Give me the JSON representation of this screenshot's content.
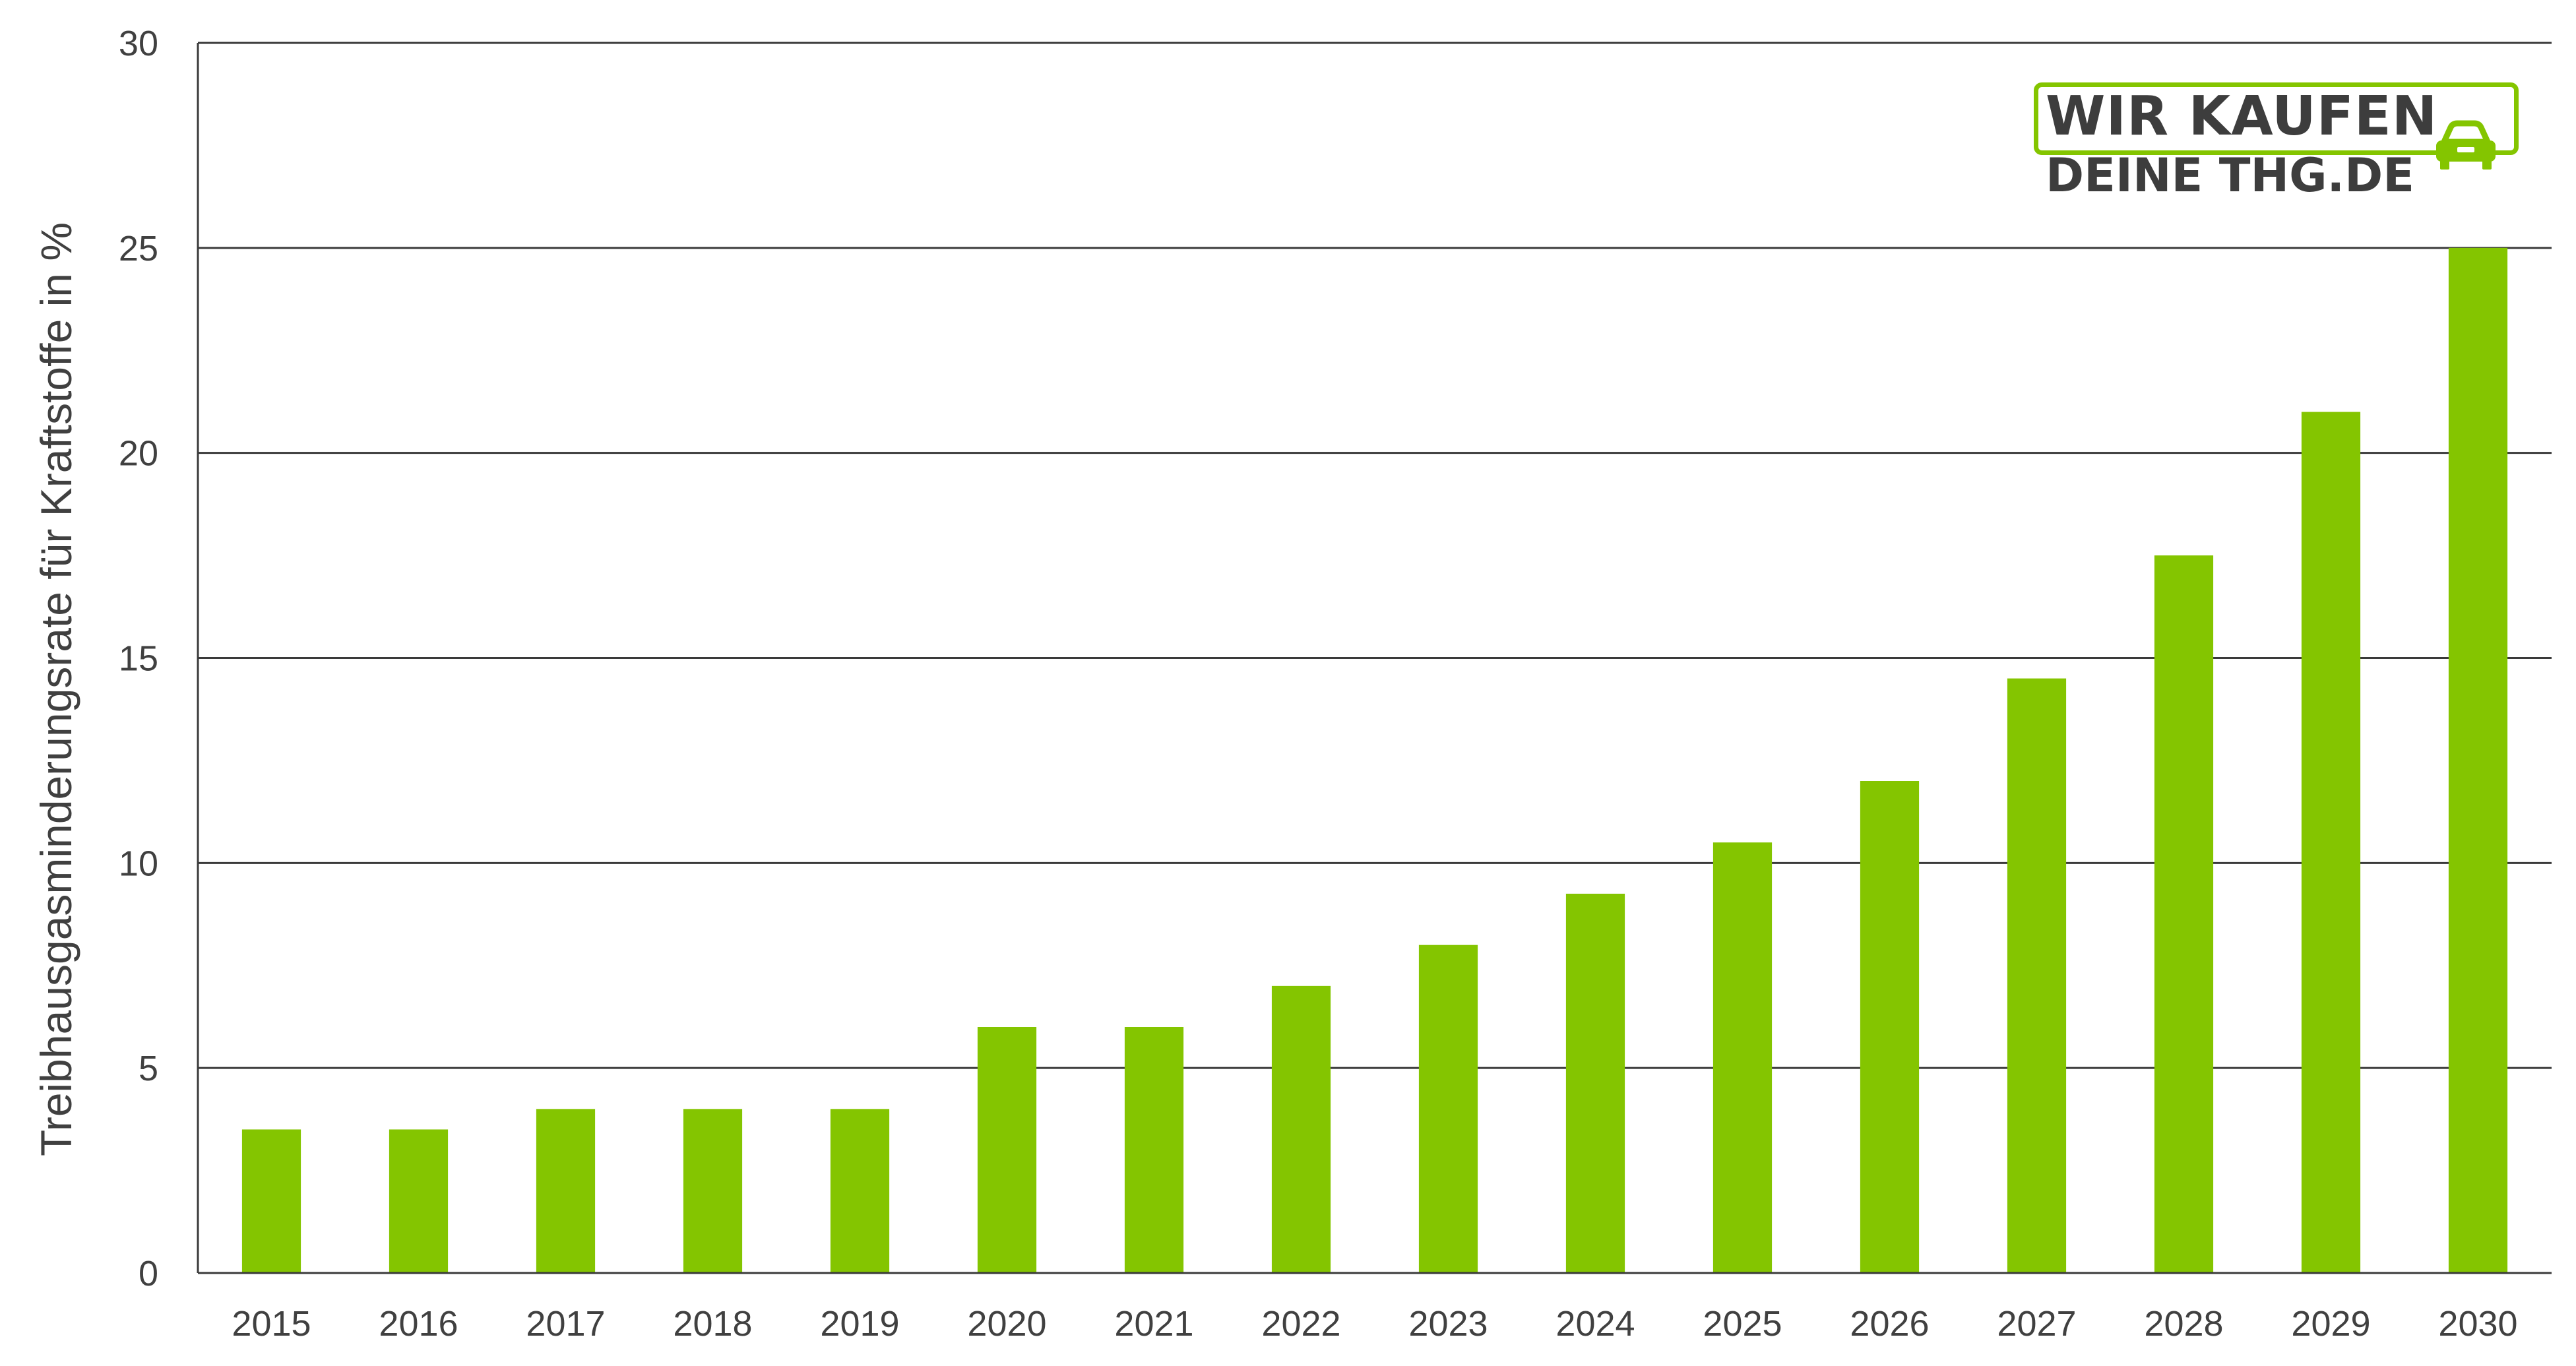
{
  "chart_data": {
    "type": "bar",
    "categories": [
      "2015",
      "2016",
      "2017",
      "2018",
      "2019",
      "2020",
      "2021",
      "2022",
      "2023",
      "2024",
      "2025",
      "2026",
      "2027",
      "2028",
      "2029",
      "2030"
    ],
    "values": [
      3.5,
      3.5,
      4,
      4,
      4,
      6,
      6,
      7,
      8,
      9.25,
      10.5,
      12,
      14.5,
      17.5,
      21,
      25
    ],
    "ylabel": "Treibhausgasminderungsrate für Kraftstoffe in %",
    "xlabel": "",
    "ylim": [
      0,
      30
    ],
    "yticks": [
      0,
      5,
      10,
      15,
      20,
      25,
      30
    ],
    "grid": true,
    "bar_color": "#84c500",
    "grid_color": "#3a3a3a"
  },
  "logo": {
    "line1": "WIR KAUFEN",
    "line2": "DEINE THG.DE",
    "icon": "car-icon",
    "color": "#84c500"
  }
}
